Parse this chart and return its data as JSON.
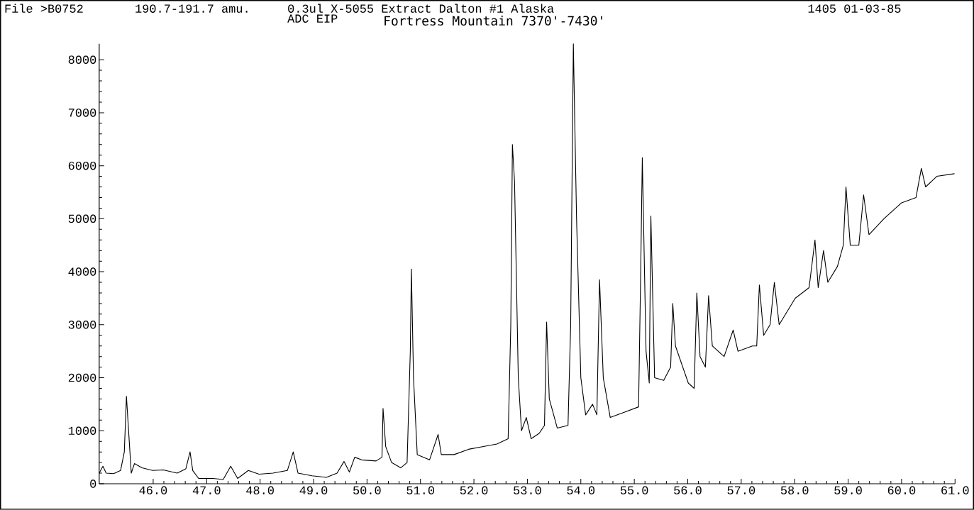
{
  "chart_data": {
    "type": "line",
    "title": "File >B0752",
    "subtitle": "Fortress Mountain 7370'-7430'",
    "annotations": [
      "190.7-191.7 amu.",
      "0.3ul X-5055 Extract Dalton #1 Alaska",
      "1405 01-03-85",
      "ADC EIP"
    ],
    "color": "#000000",
    "x": [
      44.99,
      45.06,
      45.12,
      45.26,
      45.39,
      45.46,
      45.5,
      45.54,
      45.59,
      45.65,
      45.79,
      45.99,
      46.19,
      46.45,
      46.61,
      46.69,
      46.74,
      46.85,
      47.12,
      47.31,
      47.45,
      47.58,
      47.78,
      47.98,
      48.24,
      48.51,
      48.62,
      48.71,
      48.97,
      49.24,
      49.44,
      49.57,
      49.67,
      49.77,
      49.9,
      50.17,
      50.28,
      50.3,
      50.35,
      50.46,
      50.63,
      50.75,
      50.81,
      50.83,
      50.87,
      50.94,
      51.17,
      51.33,
      51.39,
      51.63,
      51.9,
      52.16,
      52.43,
      52.64,
      52.69,
      52.72,
      52.76,
      52.83,
      52.89,
      52.98,
      53.07,
      53.22,
      53.32,
      53.36,
      53.41,
      53.56,
      53.76,
      53.81,
      53.86,
      53.92,
      54.0,
      54.09,
      54.22,
      54.3,
      54.35,
      54.42,
      54.55,
      54.82,
      55.08,
      55.12,
      55.15,
      55.22,
      55.28,
      55.31,
      55.38,
      55.55,
      55.68,
      55.72,
      55.77,
      56.01,
      56.12,
      56.17,
      56.23,
      56.33,
      56.39,
      56.46,
      56.68,
      56.85,
      56.94,
      57.21,
      57.29,
      57.34,
      57.42,
      57.54,
      57.62,
      57.71,
      58.01,
      58.27,
      58.38,
      58.44,
      58.54,
      58.62,
      58.8,
      58.91,
      58.96,
      59.04,
      59.2,
      59.29,
      59.39,
      59.67,
      60.0,
      60.27,
      60.37,
      60.45,
      60.66,
      60.99
    ],
    "values": [
      200,
      330,
      200,
      190,
      250,
      600,
      1650,
      1000,
      200,
      380,
      300,
      250,
      260,
      200,
      280,
      600,
      250,
      100,
      100,
      80,
      330,
      100,
      250,
      180,
      200,
      250,
      600,
      200,
      150,
      120,
      200,
      420,
      220,
      500,
      450,
      430,
      500,
      1420,
      700,
      400,
      300,
      400,
      2500,
      4050,
      2000,
      550,
      450,
      930,
      550,
      550,
      650,
      700,
      750,
      850,
      3000,
      6400,
      5700,
      2000,
      1000,
      1250,
      850,
      950,
      1100,
      3050,
      1600,
      1050,
      1100,
      3000,
      8300,
      5000,
      2000,
      1300,
      1500,
      1300,
      3850,
      2000,
      1250,
      1350,
      1450,
      4000,
      6150,
      2500,
      1900,
      5050,
      2000,
      1950,
      2200,
      3400,
      2600,
      1900,
      1800,
      3600,
      2400,
      2200,
      3550,
      2600,
      2400,
      2900,
      2500,
      2600,
      2600,
      3750,
      2800,
      3000,
      3800,
      3000,
      3500,
      3700,
      4600,
      3700,
      4400,
      3800,
      4100,
      4500,
      5600,
      4500,
      4500,
      5450,
      4700,
      5000,
      5300,
      5400,
      5950,
      5600,
      5800,
      5850
    ],
    "xlim": [
      44.99,
      61.0
    ],
    "ylim": [
      0,
      8300
    ],
    "xticks": [
      {
        "value": 46,
        "label": "46.0"
      },
      {
        "value": 47,
        "label": "47.0"
      },
      {
        "value": 48,
        "label": "48.0"
      },
      {
        "value": 49,
        "label": "49.0"
      },
      {
        "value": 50,
        "label": "50.0"
      },
      {
        "value": 51,
        "label": "51.0"
      },
      {
        "value": 52,
        "label": "52.0"
      },
      {
        "value": 53,
        "label": "53.0"
      },
      {
        "value": 54,
        "label": "54.0"
      },
      {
        "value": 55,
        "label": "55.0"
      },
      {
        "value": 56,
        "label": "56.0"
      },
      {
        "value": 57,
        "label": "57.0"
      },
      {
        "value": 58,
        "label": "58.0"
      },
      {
        "value": 59,
        "label": "59.0"
      },
      {
        "value": 60,
        "label": "60.0"
      },
      {
        "value": 61,
        "label": "61.0"
      }
    ],
    "yticks": [
      0,
      1000,
      2000,
      3000,
      4000,
      5000,
      6000,
      7000,
      8000
    ]
  }
}
